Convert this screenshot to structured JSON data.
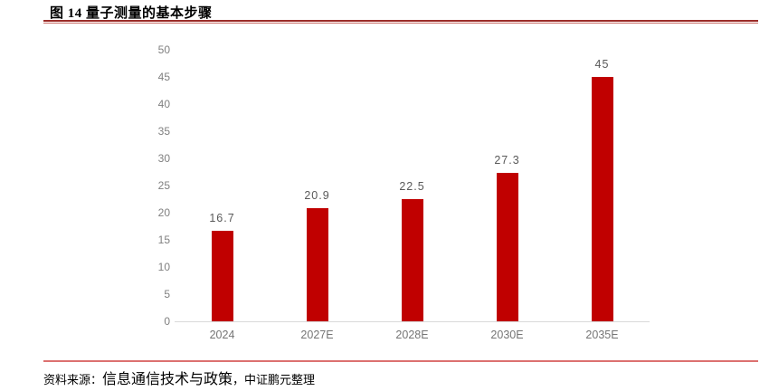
{
  "figure": {
    "title": "图 14 量子测量的基本步骤"
  },
  "source": {
    "prefix": "资料来源：",
    "name": "信息通信技术与政策",
    "suffix": "，中证鹏元整理"
  },
  "colors": {
    "bar": "#C00000",
    "axis_line": "#D9D9D9",
    "ytick_label": "#808080",
    "value_label": "#595959",
    "xtick_label": "#757575",
    "rule_top_dark": "#9B2B28",
    "rule_top_light": "#C76B66",
    "rule_bottom": "#DC7170"
  },
  "chart_data": {
    "type": "bar",
    "title": "图 14 量子测量的基本步骤",
    "categories": [
      "2024",
      "2027E",
      "2028E",
      "2030E",
      "2035E"
    ],
    "values": [
      16.7,
      20.9,
      22.5,
      27.3,
      45
    ],
    "value_labels": [
      "16.7",
      "20.9",
      "22.5",
      "27.3",
      "45"
    ],
    "xlabel": "",
    "ylabel": "",
    "ylim": [
      0,
      50
    ],
    "ytick_step": 5,
    "grid": false,
    "legend": false,
    "bar_color": "#C00000"
  }
}
